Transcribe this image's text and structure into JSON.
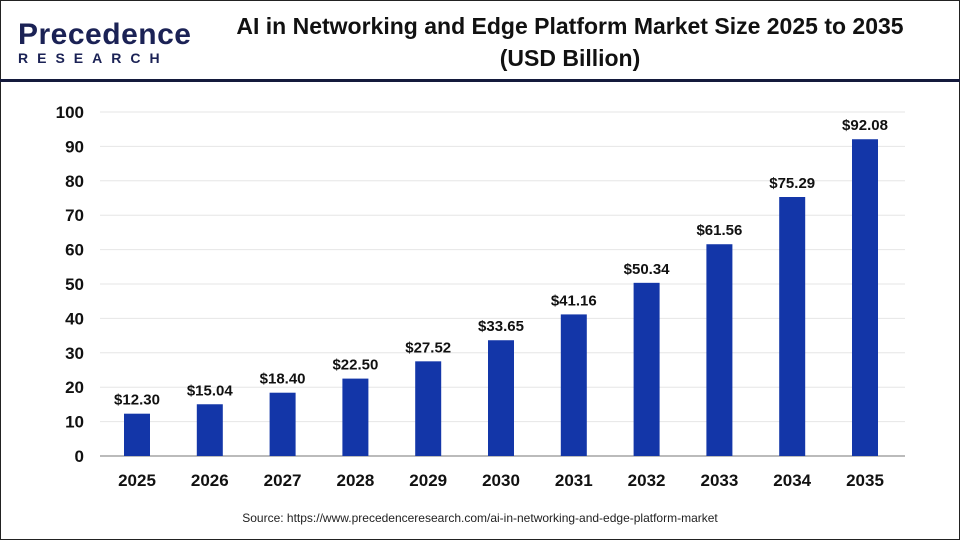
{
  "logo": {
    "line1": "Precedence",
    "line2": "RESEARCH"
  },
  "title_line1": "AI in Networking and Edge Platform Market Size 2025 to 2035",
  "title_line2": "(USD Billion)",
  "source": "Source: https://www.precedenceresearch.com/ai-in-networking-and-edge-platform-market",
  "colors": {
    "bar": "#1336a8",
    "grid": "#e6e6e6",
    "axis": "#bbbbbb"
  },
  "chart_data": {
    "type": "bar",
    "title": "AI in Networking and Edge Platform Market Size 2025 to 2035 (USD Billion)",
    "categories": [
      "2025",
      "2026",
      "2027",
      "2028",
      "2029",
      "2030",
      "2031",
      "2032",
      "2033",
      "2034",
      "2035"
    ],
    "values": [
      12.3,
      15.04,
      18.4,
      22.5,
      27.52,
      33.65,
      41.16,
      50.34,
      61.56,
      75.29,
      92.08
    ],
    "data_labels": [
      "$12.30",
      "$15.04",
      "$18.40",
      "$22.50",
      "$27.52",
      "$33.65",
      "$41.16",
      "$50.34",
      "$61.56",
      "$75.29",
      "$92.08"
    ],
    "yticks": [
      0,
      10,
      20,
      30,
      40,
      50,
      60,
      70,
      80,
      90,
      100
    ],
    "ylim": [
      0,
      100
    ],
    "grid": true,
    "xlabel": "",
    "ylabel": ""
  }
}
